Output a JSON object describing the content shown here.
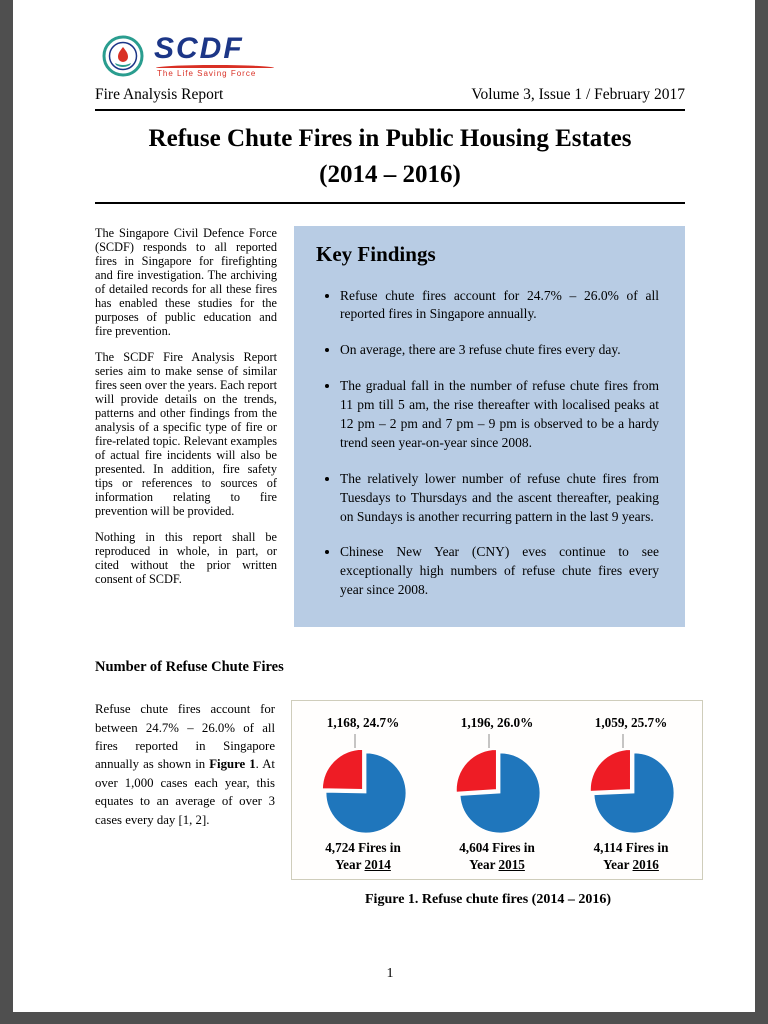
{
  "header": {
    "logo_text": "SCDF",
    "logo_tagline": "The Life Saving Force",
    "report_name": "Fire Analysis Report",
    "issue": "Volume 3, Issue 1 / February 2017"
  },
  "title": {
    "line1": "Refuse Chute Fires in Public Housing Estates",
    "line2": "(2014 – 2016)"
  },
  "intro": {
    "paragraphs": [
      "The Singapore Civil Defence Force (SCDF) responds to all reported fires in Singapore for firefighting and fire investigation. The archiving of detailed records for all these fires has enabled these studies for the purposes of public education and fire prevention.",
      "The SCDF Fire Analysis Report series aim to make sense of similar fires seen over the years. Each report will provide details on the trends, patterns and other findings from the analysis of a specific type of fire or fire-related topic. Relevant examples of actual fire incidents will also be presented. In addition, fire safety tips or references to sources of information relating to fire prevention will be provided.",
      "Nothing in this report shall be reproduced in whole, in part, or cited without the prior written consent of SCDF."
    ]
  },
  "key_findings": {
    "heading": "Key Findings",
    "bg_color": "#b8cce4",
    "bullets": [
      "Refuse chute fires account for 24.7% – 26.0% of all reported fires in Singapore annually.",
      "On average, there are 3 refuse chute fires every day.",
      "The gradual fall in the number of refuse chute fires from 11 pm till 5 am, the rise thereafter with localised peaks at 12 pm – 2 pm and 7 pm – 9 pm is observed to be a hardy trend seen year-on-year since 2008.",
      "The relatively lower number of refuse chute fires from Tuesdays to Thursdays and the ascent thereafter, peaking on Sundays is another recurring pattern in the last 9 years.",
      "Chinese New Year (CNY) eves continue to see exceptionally high numbers of refuse chute fires every year since 2008."
    ]
  },
  "section": {
    "heading": "Number of Refuse Chute Fires",
    "body": {
      "before": "Refuse chute fires account for between 24.7% – 26.0% of all fires reported in Singapore annually as shown in ",
      "bold": "Figure 1",
      "after": ". At over 1,000 cases each year, this equates to an average of over 3 cases every day [1, 2]."
    }
  },
  "figure": {
    "caption": "Figure 1. Refuse chute fires (2014 – 2016)"
  },
  "chart_data": {
    "type": "pie",
    "title": "Figure 1. Refuse chute fires (2014 – 2016)",
    "legend_position": "none",
    "colors": {
      "refuse_chute_slice": "#ee1c25",
      "other_fires": "#1f76bc"
    },
    "charts": [
      {
        "year": "2014",
        "slice_label": "1,168, 24.7%",
        "refuse_chute_fires": 1168,
        "refuse_chute_pct": 24.7,
        "total_fires": 4724,
        "total_line1": "4,724 Fires in",
        "year_prefix": "Year"
      },
      {
        "year": "2015",
        "slice_label": "1,196, 26.0%",
        "refuse_chute_fires": 1196,
        "refuse_chute_pct": 26.0,
        "total_fires": 4604,
        "total_line1": "4,604 Fires in",
        "year_prefix": "Year"
      },
      {
        "year": "2016",
        "slice_label": "1,059, 25.7%",
        "refuse_chute_fires": 1059,
        "refuse_chute_pct": 25.7,
        "total_fires": 4114,
        "total_line1": "4,114 Fires in",
        "year_prefix": "Year"
      }
    ]
  },
  "page_number": "1"
}
